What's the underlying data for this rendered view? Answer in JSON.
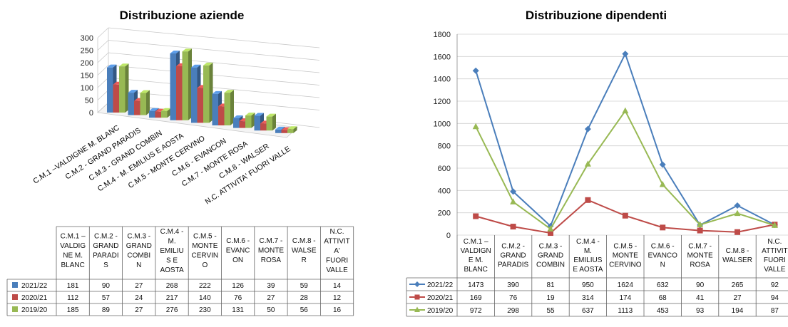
{
  "colors": {
    "s2122": "#4a7ebb",
    "s2021": "#be4b48",
    "s1920": "#98b954"
  },
  "chart_data": [
    {
      "type": "bar",
      "title": "Distribuzione aziende",
      "categories": [
        "C.M.1 – VALDIGNE M. BLANC",
        "C.M.2 - GRAND PARADIS",
        "C.M.3 - GRAND COMBIN",
        "C.M.4 - M. EMILIUS E AOSTA",
        "C.M.5 - MONTE CERVINO",
        "C.M.6 - EVANCON",
        "C.M.7 - MONTE ROSA",
        "C.M.8 - WALSER",
        "N.C. ATTIVITA' FUORI VALLE"
      ],
      "axis_labels": [
        "C.M.1 –VALDIGNE M. BLANC",
        "C.M.2 - GRAND PARADIS",
        "C.M.3 - GRAND COMBIN",
        "C.M.4 - M. EMILIUS E AOSTA",
        "C.M.5 - MONTE CERVINO",
        "C.M.6 - EVANCON",
        "C.M.7 - MONTE ROSA",
        "C.M.8 - WALSER",
        "N.C. ATTIVITA' FUORI VALLE"
      ],
      "table_headers": [
        [
          "C.M.1 –",
          "VALDIG",
          "NE M.",
          "BLANC"
        ],
        [
          "C.M.2 -",
          "GRAND",
          "PARADI",
          "S"
        ],
        [
          "C.M.3 -",
          "GRAND",
          "COMBI",
          "N"
        ],
        [
          "C.M.4 -",
          "M.",
          "EMILIU",
          "S E",
          "AOSTA"
        ],
        [
          "C.M.5 -",
          "MONTE",
          "CERVIN",
          "O"
        ],
        [
          "C.M.6 -",
          "EVANC",
          "ON"
        ],
        [
          "C.M.7 -",
          "MONTE",
          "ROSA"
        ],
        [
          "C.M.8 -",
          "WALSE",
          "R"
        ],
        [
          "N.C.",
          "ATTIVIT",
          "A'",
          "FUORI",
          "VALLE"
        ]
      ],
      "series": [
        {
          "name": "2021/22",
          "values": [
            181,
            90,
            27,
            268,
            222,
            126,
            39,
            59,
            14
          ]
        },
        {
          "name": "2020/21",
          "values": [
            112,
            57,
            24,
            217,
            140,
            76,
            27,
            28,
            12
          ]
        },
        {
          "name": "2019/20",
          "values": [
            185,
            89,
            27,
            276,
            230,
            131,
            50,
            56,
            16
          ]
        }
      ],
      "yticks": [
        "0",
        "50",
        "100",
        "150",
        "200",
        "250",
        "300"
      ],
      "ylim": [
        0,
        300
      ],
      "grid": true
    },
    {
      "type": "line",
      "title": "Distribuzione dipendenti",
      "categories": [
        "C.M.1 – VALDIGNE M. BLANC",
        "C.M.2 - GRAND PARADIS",
        "C.M.3 - GRAND COMBIN",
        "C.M.4 - M. EMILIUS E AOSTA",
        "C.M.5 - MONTE CERVINO",
        "C.M.6 - EVANCON",
        "C.M.7 - MONTE ROSA",
        "C.M.8 - WALSER",
        "N.C. ATTIVITA' FUORI VALLE"
      ],
      "table_headers": [
        [
          "C.M.1 –",
          "VALDIGN",
          "E M.",
          "BLANC"
        ],
        [
          "C.M.2 -",
          "GRAND",
          "PARADIS"
        ],
        [
          "C.M.3 -",
          "GRAND",
          "COMBIN"
        ],
        [
          "C.M.4 -",
          "M.",
          "EMILIUS",
          "E AOSTA"
        ],
        [
          "C.M.5 -",
          "MONTE",
          "CERVINO"
        ],
        [
          "C.M.6 -",
          "EVANCO",
          "N"
        ],
        [
          "C.M.7 -",
          "MONTE",
          "ROSA"
        ],
        [
          "C.M.8 -",
          "WALSER"
        ],
        [
          "N.C.",
          "ATTIVIT",
          "FUORI",
          "VALLE"
        ]
      ],
      "series": [
        {
          "name": "2021/22",
          "values": [
            1473,
            390,
            81,
            950,
            1624,
            632,
            90,
            265,
            92
          ],
          "marker": "diamond"
        },
        {
          "name": "2020/21",
          "values": [
            169,
            76,
            19,
            314,
            174,
            68,
            41,
            27,
            94
          ],
          "marker": "square"
        },
        {
          "name": "2019/20",
          "values": [
            972,
            298,
            55,
            637,
            1113,
            453,
            93,
            194,
            87
          ],
          "marker": "triangle"
        }
      ],
      "yticks": [
        "0",
        "200",
        "400",
        "600",
        "800",
        "1000",
        "1200",
        "1400",
        "1600",
        "1800"
      ],
      "ylim": [
        0,
        1800
      ],
      "grid": true
    }
  ]
}
